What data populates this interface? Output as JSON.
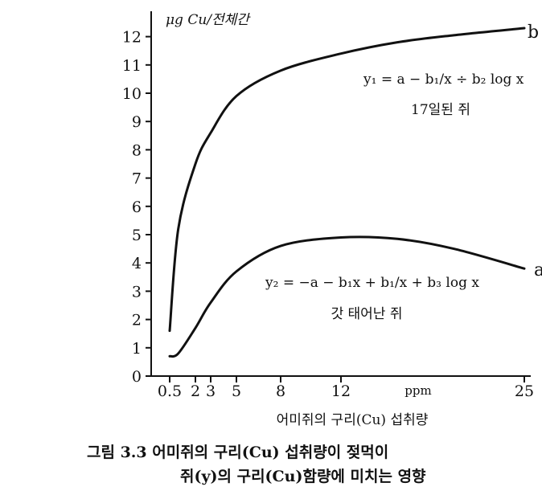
{
  "chart_data": {
    "type": "line",
    "ylabel": "μg Cu/전체간",
    "xlabel": "어미쥐의 구리(Cu) 섭취량",
    "x_unit": "ppm",
    "x_ticks": [
      0.5,
      2,
      3,
      5,
      8,
      12,
      25
    ],
    "x_tick_labels": [
      "0.5",
      "2",
      "3",
      "5",
      "8",
      "12",
      "25"
    ],
    "y_ticks": [
      0,
      1,
      2,
      3,
      4,
      5,
      6,
      7,
      8,
      9,
      10,
      11,
      12
    ],
    "ylim": [
      0,
      12.5
    ],
    "series": [
      {
        "name": "b",
        "note": "17일된 쥐",
        "formula": "y₁ = a − b₁/x ÷ b₂ log x",
        "x": [
          0.5,
          1,
          2,
          3,
          5,
          8,
          12,
          16,
          20,
          25
        ],
        "y": [
          1.6,
          5.2,
          7.5,
          8.6,
          9.9,
          10.8,
          11.4,
          11.8,
          12.05,
          12.3
        ]
      },
      {
        "name": "a",
        "note": "갓 태어난 쥐",
        "formula": "y₂ = −a − b₁x + b₁/x + b₃ log x",
        "x": [
          0.5,
          1,
          2,
          3,
          5,
          8,
          12,
          16,
          20,
          25
        ],
        "y": [
          0.7,
          0.8,
          1.7,
          2.6,
          3.7,
          4.6,
          4.9,
          4.85,
          4.5,
          3.8
        ]
      }
    ]
  },
  "caption": {
    "line1": "그림 3.3  어미쥐의 구리(Cu) 섭취량이 젖먹이",
    "line2": "쥐(y)의 구리(Cu)함량에 미치는 영향"
  }
}
